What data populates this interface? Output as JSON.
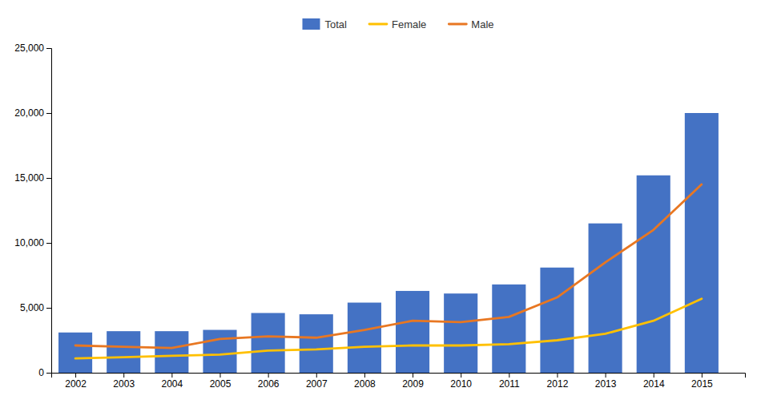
{
  "chart_data": {
    "type": "bar",
    "x": [
      2002,
      2003,
      2004,
      2005,
      2006,
      2007,
      2008,
      2009,
      2010,
      2011,
      2012,
      2013,
      2014,
      2015
    ],
    "xlim": [
      2001.5,
      2015.9
    ],
    "xticks": [
      2002,
      2003,
      2004,
      2005,
      2006,
      2007,
      2008,
      2009,
      2010,
      2011,
      2012,
      2013,
      2014,
      2015
    ],
    "ylim": [
      0,
      25000
    ],
    "yticks": [
      0,
      {
        "value": 5000,
        "label": "5,000"
      },
      {
        "value": 10000,
        "label": "10,000"
      },
      {
        "value": 15000,
        "label": "15,000"
      },
      {
        "value": 20000,
        "label": "20,000"
      },
      {
        "value": 25000,
        "label": "25,000"
      }
    ],
    "series": [
      {
        "name": "Total",
        "type": "bar",
        "color": "#4472C4",
        "values": [
          3100,
          3200,
          3200,
          3300,
          4600,
          4500,
          5400,
          6300,
          6100,
          6800,
          8100,
          11500,
          15200,
          20000
        ]
      },
      {
        "name": "Female",
        "type": "line",
        "color": "#FFC000",
        "values": [
          1100,
          1200,
          1300,
          1400,
          1700,
          1800,
          2000,
          2100,
          2100,
          2200,
          2500,
          3000,
          4000,
          5700
        ]
      },
      {
        "name": "Male",
        "type": "line",
        "color": "#E87722",
        "values": [
          2100,
          2000,
          1900,
          2600,
          2800,
          2700,
          3300,
          4000,
          3900,
          4300,
          5800,
          8500,
          11000,
          14500
        ]
      }
    ],
    "legend": "top",
    "grid": false
  }
}
